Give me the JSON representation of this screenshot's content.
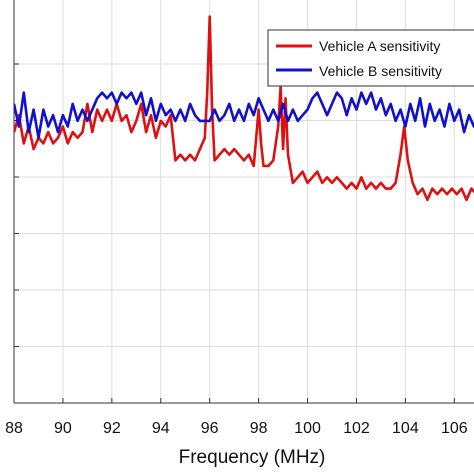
{
  "chart_data": {
    "type": "line",
    "title": "",
    "xlabel": "Frequency (MHz)",
    "ylabel": "",
    "xlim": [
      88,
      107.5
    ],
    "ylim": [
      0,
      7
    ],
    "grid": true,
    "legend_position": "top-right",
    "x_ticks": [
      "88",
      "90",
      "92",
      "94",
      "96",
      "98",
      "100",
      "102",
      "104",
      "106"
    ],
    "y_tick_count": 6,
    "series": [
      {
        "name": "Vehicle A sensitivity",
        "color": "#dd1111",
        "x": [
          88,
          88.2,
          88.4,
          88.6,
          88.8,
          89,
          89.2,
          89.4,
          89.6,
          89.8,
          90,
          90.2,
          90.4,
          90.6,
          90.8,
          91,
          91.2,
          91.4,
          91.6,
          91.8,
          92,
          92.2,
          92.4,
          92.6,
          92.8,
          93,
          93.2,
          93.4,
          93.6,
          93.8,
          94,
          94.2,
          94.4,
          94.6,
          94.8,
          95,
          95.2,
          95.4,
          95.6,
          95.8,
          95.9,
          96,
          96.1,
          96.2,
          96.4,
          96.6,
          96.8,
          97,
          97.2,
          97.4,
          97.6,
          97.8,
          97.9,
          98,
          98.1,
          98.2,
          98.4,
          98.6,
          98.8,
          98.9,
          99,
          99.1,
          99.2,
          99.4,
          99.6,
          99.8,
          100,
          100.2,
          100.4,
          100.6,
          100.8,
          101,
          101.2,
          101.4,
          101.6,
          101.8,
          102,
          102.2,
          102.4,
          102.6,
          102.8,
          103,
          103.2,
          103.4,
          103.6,
          103.8,
          103.95,
          104.1,
          104.3,
          104.5,
          104.7,
          104.9,
          105.1,
          105.3,
          105.5,
          105.7,
          105.9,
          106.1,
          106.3,
          106.5,
          106.7,
          106.9,
          107.1,
          107.3,
          107.5
        ],
        "values": [
          4.8,
          5.1,
          4.6,
          4.9,
          4.5,
          4.7,
          4.6,
          4.8,
          4.6,
          4.7,
          4.9,
          4.6,
          4.8,
          4.7,
          4.8,
          5.3,
          4.8,
          5.2,
          5.0,
          5.2,
          5.0,
          5.3,
          5.0,
          5.1,
          4.8,
          5.0,
          5.3,
          4.8,
          5.1,
          4.7,
          5.0,
          4.9,
          5.1,
          4.3,
          4.4,
          4.3,
          4.4,
          4.3,
          4.5,
          4.7,
          5.5,
          6.85,
          5.2,
          4.3,
          4.4,
          4.5,
          4.4,
          4.5,
          4.4,
          4.3,
          4.4,
          4.2,
          4.7,
          5.2,
          4.6,
          4.2,
          4.2,
          4.3,
          4.9,
          5.6,
          4.5,
          5.4,
          4.4,
          3.9,
          4.0,
          4.1,
          3.9,
          4.0,
          4.1,
          3.9,
          4.0,
          3.9,
          4.0,
          3.9,
          3.8,
          3.9,
          3.8,
          4.0,
          3.8,
          3.9,
          3.8,
          3.9,
          3.8,
          3.8,
          3.9,
          4.4,
          4.9,
          4.3,
          3.9,
          3.7,
          3.8,
          3.6,
          3.8,
          3.7,
          3.8,
          3.7,
          3.8,
          3.7,
          3.8,
          3.6,
          3.8,
          3.7,
          3.8,
          3.7,
          3.8
        ]
      },
      {
        "name": "Vehicle B sensitivity",
        "color": "#1111cc",
        "x": [
          88,
          88.2,
          88.4,
          88.6,
          88.8,
          89,
          89.2,
          89.4,
          89.6,
          89.8,
          90,
          90.2,
          90.4,
          90.6,
          90.8,
          91,
          91.2,
          91.4,
          91.6,
          91.8,
          92,
          92.2,
          92.4,
          92.6,
          92.8,
          93,
          93.2,
          93.4,
          93.6,
          93.8,
          94,
          94.2,
          94.4,
          94.6,
          94.8,
          95,
          95.2,
          95.4,
          95.6,
          95.8,
          96,
          96.2,
          96.4,
          96.6,
          96.8,
          97,
          97.2,
          97.4,
          97.6,
          97.8,
          98,
          98.2,
          98.4,
          98.6,
          98.8,
          99,
          99.2,
          99.4,
          99.6,
          99.8,
          100,
          100.2,
          100.4,
          100.6,
          100.8,
          101,
          101.2,
          101.4,
          101.6,
          101.8,
          102,
          102.2,
          102.4,
          102.6,
          102.8,
          103,
          103.2,
          103.4,
          103.6,
          103.8,
          104,
          104.2,
          104.4,
          104.6,
          104.8,
          105,
          105.2,
          105.4,
          105.6,
          105.8,
          106,
          106.2,
          106.4,
          106.6,
          106.8,
          107,
          107.2,
          107.4,
          107.5
        ],
        "values": [
          5.3,
          4.9,
          5.5,
          4.8,
          5.2,
          4.7,
          5.2,
          4.9,
          5.1,
          4.8,
          5.1,
          4.9,
          5.3,
          5.0,
          5.2,
          5.0,
          5.2,
          5.4,
          5.5,
          5.4,
          5.5,
          5.3,
          5.5,
          5.4,
          5.5,
          5.3,
          5.5,
          5.1,
          5.4,
          5.0,
          5.3,
          5.1,
          5.2,
          5.0,
          5.2,
          5.0,
          5.3,
          5.1,
          5.0,
          5.0,
          5.0,
          5.2,
          5.0,
          5.1,
          5.3,
          5.0,
          5.2,
          5.0,
          5.3,
          5.1,
          5.4,
          5.2,
          5.0,
          5.2,
          5.0,
          5.3,
          5.0,
          5.2,
          5.0,
          5.1,
          5.2,
          5.4,
          5.5,
          5.3,
          5.1,
          5.3,
          5.5,
          5.4,
          5.1,
          5.4,
          5.2,
          5.5,
          5.3,
          5.5,
          5.2,
          5.4,
          5.1,
          5.3,
          5.0,
          5.2,
          4.9,
          5.3,
          5.0,
          5.4,
          4.9,
          5.3,
          5.0,
          5.2,
          4.9,
          5.3,
          5.0,
          5.2,
          4.8,
          5.1,
          4.9,
          5.2,
          5.0,
          5.1,
          5.2
        ]
      }
    ]
  }
}
